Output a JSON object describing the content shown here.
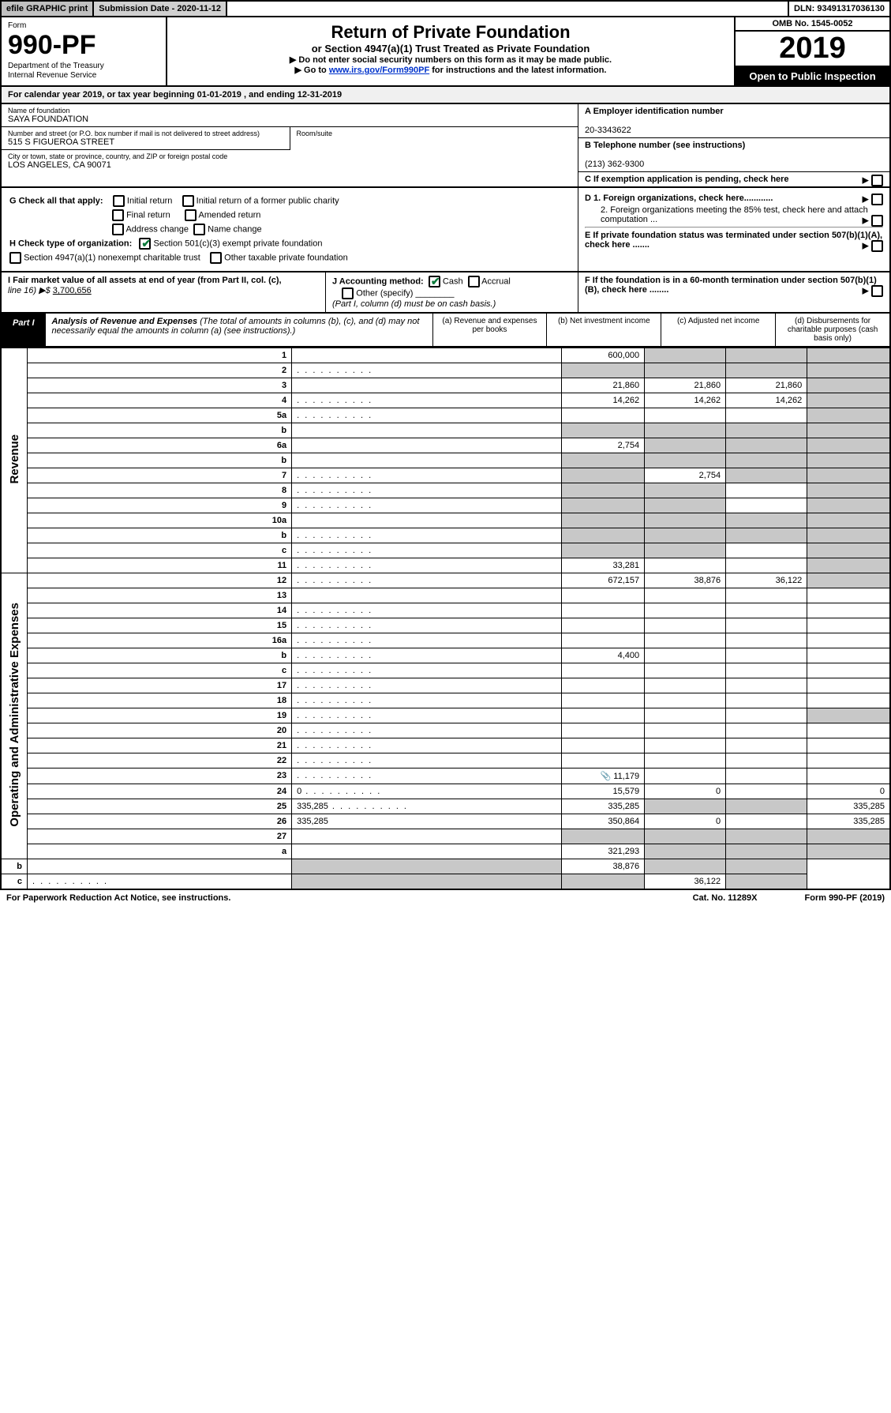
{
  "top": {
    "efile": "efile GRAPHIC print",
    "submission": "Submission Date - 2020-11-12",
    "dln": "DLN: 93491317036130"
  },
  "header": {
    "form_word": "Form",
    "form_num": "990-PF",
    "dept": "Department of the Treasury",
    "irs": "Internal Revenue Service",
    "title": "Return of Private Foundation",
    "subtitle": "or Section 4947(a)(1) Trust Treated as Private Foundation",
    "inst1": "▶ Do not enter social security numbers on this form as it may be made public.",
    "inst2a": "▶ Go to ",
    "inst2_link": "www.irs.gov/Form990PF",
    "inst2b": " for instructions and the latest information.",
    "omb": "OMB No. 1545-0052",
    "year": "2019",
    "open": "Open to Public Inspection"
  },
  "cal_year": "For calendar year 2019, or tax year beginning 01-01-2019             , and ending 12-31-2019",
  "entity": {
    "name_lbl": "Name of foundation",
    "name": "SAYA FOUNDATION",
    "addr_lbl": "Number and street (or P.O. box number if mail is not delivered to street address)",
    "addr": "515 S FIGUEROA STREET",
    "room_lbl": "Room/suite",
    "city_lbl": "City or town, state or province, country, and ZIP or foreign postal code",
    "city": "LOS ANGELES, CA  90071",
    "ein_lbl": "A Employer identification number",
    "ein": "20-3343622",
    "tel_lbl": "B Telephone number (see instructions)",
    "tel": "(213) 362-9300",
    "c_lbl": "C If exemption application is pending, check here"
  },
  "checks": {
    "g_lbl": "G Check all that apply:",
    "g1": "Initial return",
    "g2": "Initial return of a former public charity",
    "g3": "Final return",
    "g4": "Amended return",
    "g5": "Address change",
    "g6": "Name change",
    "h_lbl": "H Check type of organization:",
    "h1": "Section 501(c)(3) exempt private foundation",
    "h2": "Section 4947(a)(1) nonexempt charitable trust",
    "h3": "Other taxable private foundation",
    "d1": "D 1. Foreign organizations, check here............",
    "d2": "2. Foreign organizations meeting the 85% test, check here and attach computation ...",
    "e": "E  If private foundation status was terminated under section 507(b)(1)(A), check here .......",
    "i_lbl": "I Fair market value of all assets at end of year (from Part II, col. (c),",
    "i_line": "line 16) ▶$",
    "i_val": "3,700,656",
    "j_lbl": "J Accounting method:",
    "j1": "Cash",
    "j2": "Accrual",
    "j3": "Other (specify)",
    "j_note": "(Part I, column (d) must be on cash basis.)",
    "f": "F  If the foundation is in a 60-month termination under section 507(b)(1)(B), check here ........"
  },
  "part1": {
    "label": "Part I",
    "title_b": "Analysis of Revenue and Expenses",
    "title_rest": " (The total of amounts in columns (b), (c), and (d) may not necessarily equal the amounts in column (a) (see instructions).)",
    "col_a": "(a)    Revenue and expenses per books",
    "col_b": "(b)   Net investment income",
    "col_c": "(c)   Adjusted net income",
    "col_d": "(d)   Disbursements for charitable purposes (cash basis only)"
  },
  "side_labels": {
    "rev": "Revenue",
    "exp": "Operating and Administrative Expenses"
  },
  "rows": [
    {
      "n": "1",
      "d": "",
      "a": "600,000",
      "b": "",
      "c": "",
      "b_sh": 1,
      "c_sh": 1,
      "d_sh": 1
    },
    {
      "n": "2",
      "d": "",
      "a": "",
      "b": "",
      "c": "",
      "a_sh": 1,
      "b_sh": 1,
      "c_sh": 1,
      "d_sh": 1,
      "dots": 1
    },
    {
      "n": "3",
      "d": "",
      "a": "21,860",
      "b": "21,860",
      "c": "21,860",
      "d_sh": 1
    },
    {
      "n": "4",
      "d": "",
      "a": "14,262",
      "b": "14,262",
      "c": "14,262",
      "d_sh": 1,
      "dots": 1
    },
    {
      "n": "5a",
      "d": "",
      "a": "",
      "b": "",
      "c": "",
      "d_sh": 1,
      "dots": 1
    },
    {
      "n": "b",
      "d": "",
      "a": "",
      "b": "",
      "c": "",
      "a_sh": 1,
      "b_sh": 1,
      "c_sh": 1,
      "d_sh": 1
    },
    {
      "n": "6a",
      "d": "",
      "a": "2,754",
      "b": "",
      "c": "",
      "b_sh": 1,
      "c_sh": 1,
      "d_sh": 1
    },
    {
      "n": "b",
      "d": "",
      "a": "",
      "b": "",
      "c": "",
      "a_sh": 1,
      "b_sh": 1,
      "c_sh": 1,
      "d_sh": 1
    },
    {
      "n": "7",
      "d": "",
      "a": "",
      "b": "2,754",
      "c": "",
      "a_sh": 1,
      "c_sh": 1,
      "d_sh": 1,
      "dots": 1
    },
    {
      "n": "8",
      "d": "",
      "a": "",
      "b": "",
      "c": "",
      "a_sh": 1,
      "b_sh": 1,
      "d_sh": 1,
      "dots": 1
    },
    {
      "n": "9",
      "d": "",
      "a": "",
      "b": "",
      "c": "",
      "a_sh": 1,
      "b_sh": 1,
      "d_sh": 1,
      "dots": 1
    },
    {
      "n": "10a",
      "d": "",
      "a": "",
      "b": "",
      "c": "",
      "a_sh": 1,
      "b_sh": 1,
      "c_sh": 1,
      "d_sh": 1
    },
    {
      "n": "b",
      "d": "",
      "a": "",
      "b": "",
      "c": "",
      "a_sh": 1,
      "b_sh": 1,
      "c_sh": 1,
      "d_sh": 1,
      "dots": 1
    },
    {
      "n": "c",
      "d": "",
      "a": "",
      "b": "",
      "c": "",
      "a_sh": 1,
      "b_sh": 1,
      "d_sh": 1,
      "dots": 1
    },
    {
      "n": "11",
      "d": "",
      "a": "33,281",
      "b": "",
      "c": "",
      "d_sh": 1,
      "dots": 1
    },
    {
      "n": "12",
      "d": "",
      "a": "672,157",
      "b": "38,876",
      "c": "36,122",
      "d_sh": 1,
      "dots": 1
    },
    {
      "n": "13",
      "d": "",
      "a": "",
      "b": "",
      "c": ""
    },
    {
      "n": "14",
      "d": "",
      "a": "",
      "b": "",
      "c": "",
      "dots": 1
    },
    {
      "n": "15",
      "d": "",
      "a": "",
      "b": "",
      "c": "",
      "dots": 1
    },
    {
      "n": "16a",
      "d": "",
      "a": "",
      "b": "",
      "c": "",
      "dots": 1
    },
    {
      "n": "b",
      "d": "",
      "a": "4,400",
      "b": "",
      "c": "",
      "dots": 1
    },
    {
      "n": "c",
      "d": "",
      "a": "",
      "b": "",
      "c": "",
      "dots": 1
    },
    {
      "n": "17",
      "d": "",
      "a": "",
      "b": "",
      "c": "",
      "dots": 1
    },
    {
      "n": "18",
      "d": "",
      "a": "",
      "b": "",
      "c": "",
      "dots": 1
    },
    {
      "n": "19",
      "d": "",
      "a": "",
      "b": "",
      "c": "",
      "d_sh": 1,
      "dots": 1
    },
    {
      "n": "20",
      "d": "",
      "a": "",
      "b": "",
      "c": "",
      "dots": 1
    },
    {
      "n": "21",
      "d": "",
      "a": "",
      "b": "",
      "c": "",
      "dots": 1
    },
    {
      "n": "22",
      "d": "",
      "a": "",
      "b": "",
      "c": "",
      "dots": 1
    },
    {
      "n": "23",
      "d": "",
      "a": "11,179",
      "b": "",
      "c": "",
      "dots": 1,
      "icon": 1
    },
    {
      "n": "24",
      "d": "0",
      "a": "15,579",
      "b": "0",
      "c": "",
      "dots": 1
    },
    {
      "n": "25",
      "d": "335,285",
      "a": "335,285",
      "b": "",
      "c": "",
      "b_sh": 1,
      "c_sh": 1,
      "dots": 1
    },
    {
      "n": "26",
      "d": "335,285",
      "a": "350,864",
      "b": "0",
      "c": ""
    },
    {
      "n": "27",
      "d": "",
      "a": "",
      "b": "",
      "c": "",
      "a_sh": 1,
      "b_sh": 1,
      "c_sh": 1,
      "d_sh": 1
    },
    {
      "n": "a",
      "d": "",
      "a": "321,293",
      "b": "",
      "c": "",
      "b_sh": 1,
      "c_sh": 1,
      "d_sh": 1
    },
    {
      "n": "b",
      "d": "",
      "a": "",
      "b": "38,876",
      "c": "",
      "a_sh": 1,
      "c_sh": 1,
      "d_sh": 1
    },
    {
      "n": "c",
      "d": "",
      "a": "",
      "b": "",
      "c": "36,122",
      "a_sh": 1,
      "b_sh": 1,
      "d_sh": 1,
      "dots": 1
    }
  ],
  "footer": {
    "left": "For Paperwork Reduction Act Notice, see instructions.",
    "mid": "Cat. No. 11289X",
    "right": "Form 990-PF (2019)"
  },
  "colors": {
    "shade": "#c8c8c8",
    "link": "#0033cc",
    "check_green": "#0a7a3a"
  }
}
